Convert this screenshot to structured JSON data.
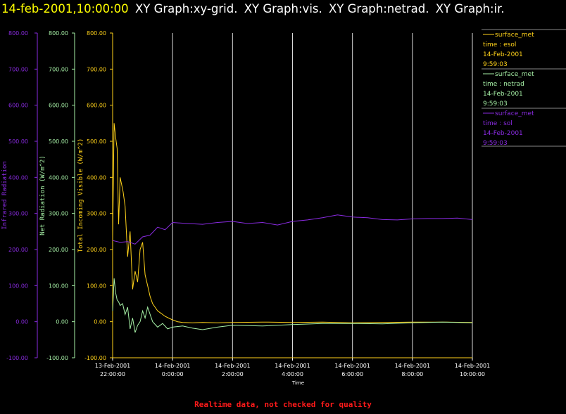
{
  "header": {
    "date_label": "14-feb-2001,10:00:00",
    "graph_titles": [
      "XY Graph:xy-grid.",
      "XY Graph:vis.",
      "XY Graph:netrad.",
      "XY Graph:ir."
    ]
  },
  "footer": {
    "note": "Realtime data, not checked for quality"
  },
  "colors": {
    "background": "#000000",
    "grid": "#d9d9d9",
    "infrared": "#8a2be2",
    "netrad": "#a6f0a6",
    "solar": "#ffd21a",
    "footer": "#ff1a1a",
    "title_date": "#ffff00"
  },
  "legend": [
    {
      "source": "surface_met",
      "field": "time : esol",
      "date": "14-Feb-2001",
      "time": "9:59:03",
      "color": "#ffd21a"
    },
    {
      "source": "surface_met",
      "field": "time : netrad",
      "date": "14-Feb-2001",
      "time": "9:59:03",
      "color": "#a6f0a6"
    },
    {
      "source": "surface_met",
      "field": "time : sol",
      "date": "14-Feb-2001",
      "time": "9:59:03",
      "color": "#8a2be2"
    }
  ],
  "chart_data": {
    "type": "line",
    "xlabel": "Time",
    "x_ticks": [
      {
        "date": "13-Feb-2001",
        "time": "22:00:00"
      },
      {
        "date": "14-Feb-2001",
        "time": "0:00:00"
      },
      {
        "date": "14-Feb-2001",
        "time": "2:00:00"
      },
      {
        "date": "14-Feb-2001",
        "time": "4:00:00"
      },
      {
        "date": "14-Feb-2001",
        "time": "6:00:00"
      },
      {
        "date": "14-Feb-2001",
        "time": "8:00:00"
      },
      {
        "date": "14-Feb-2001",
        "time": "10:00:00"
      }
    ],
    "xlim": [
      "13-Feb-2001 22:00:00",
      "14-Feb-2001 10:00:00"
    ],
    "ylim": [
      -100,
      800
    ],
    "y_ticks": [
      "-100.00",
      "0.00",
      "100.00",
      "200.00",
      "300.00",
      "400.00",
      "500.00",
      "600.00",
      "700.00",
      "800.00"
    ],
    "axes": [
      {
        "label": "Infrared Radiation",
        "color": "#8a2be2"
      },
      {
        "label": "Net Radiation (W/m^2)",
        "color": "#a6f0a6"
      },
      {
        "label": "Total Incoming Visible (W/m^2)",
        "color": "#ffd21a"
      }
    ],
    "grid": "vertical",
    "legend_position": "right",
    "series": [
      {
        "axis": 2,
        "color": "#ffd21a",
        "x": [
          "13-Feb-2001 22:00:00",
          "13-Feb-2001 22:03:00",
          "13-Feb-2001 22:06:00",
          "13-Feb-2001 22:09:00",
          "13-Feb-2001 22:12:00",
          "13-Feb-2001 22:15:00",
          "13-Feb-2001 22:18:00",
          "13-Feb-2001 22:21:00",
          "13-Feb-2001 22:25:00",
          "13-Feb-2001 22:30:00",
          "13-Feb-2001 22:35:00",
          "13-Feb-2001 22:40:00",
          "13-Feb-2001 22:45:00",
          "13-Feb-2001 22:50:00",
          "13-Feb-2001 22:55:00",
          "13-Feb-2001 23:00:00",
          "13-Feb-2001 23:05:00",
          "13-Feb-2001 23:10:00",
          "13-Feb-2001 23:15:00",
          "13-Feb-2001 23:20:00",
          "13-Feb-2001 23:25:00",
          "13-Feb-2001 23:30:00",
          "13-Feb-2001 23:35:00",
          "13-Feb-2001 23:40:00",
          "13-Feb-2001 23:45:00",
          "13-Feb-2001 23:52:00",
          "14-Feb-2001 00:00:00",
          "14-Feb-2001 00:10:00",
          "14-Feb-2001 00:20:00",
          "14-Feb-2001 00:40:00",
          "14-Feb-2001 01:00:00",
          "14-Feb-2001 01:30:00",
          "14-Feb-2001 02:00:00",
          "14-Feb-2001 03:00:00",
          "14-Feb-2001 04:00:00",
          "14-Feb-2001 05:00:00",
          "14-Feb-2001 06:00:00",
          "14-Feb-2001 07:00:00",
          "14-Feb-2001 08:00:00",
          "14-Feb-2001 09:00:00",
          "14-Feb-2001 10:00:00"
        ],
        "y": [
          230,
          550,
          510,
          480,
          270,
          400,
          380,
          360,
          320,
          180,
          250,
          90,
          140,
          110,
          200,
          220,
          130,
          100,
          70,
          50,
          40,
          30,
          25,
          20,
          15,
          10,
          5,
          0,
          -2,
          -3,
          -2,
          -3,
          -2,
          -1,
          -2,
          -1,
          -3,
          -2,
          -1,
          -1,
          -2
        ]
      },
      {
        "axis": 1,
        "color": "#a6f0a6",
        "x": [
          "13-Feb-2001 22:00:00",
          "13-Feb-2001 22:03:00",
          "13-Feb-2001 22:06:00",
          "13-Feb-2001 22:09:00",
          "13-Feb-2001 22:12:00",
          "13-Feb-2001 22:15:00",
          "13-Feb-2001 22:20:00",
          "13-Feb-2001 22:25:00",
          "13-Feb-2001 22:30:00",
          "13-Feb-2001 22:35:00",
          "13-Feb-2001 22:40:00",
          "13-Feb-2001 22:45:00",
          "13-Feb-2001 22:50:00",
          "13-Feb-2001 22:55:00",
          "13-Feb-2001 23:00:00",
          "13-Feb-2001 23:05:00",
          "13-Feb-2001 23:10:00",
          "13-Feb-2001 23:20:00",
          "13-Feb-2001 23:30:00",
          "13-Feb-2001 23:40:00",
          "13-Feb-2001 23:50:00",
          "14-Feb-2001 00:00:00",
          "14-Feb-2001 00:20:00",
          "14-Feb-2001 00:40:00",
          "14-Feb-2001 01:00:00",
          "14-Feb-2001 01:30:00",
          "14-Feb-2001 02:00:00",
          "14-Feb-2001 03:00:00",
          "14-Feb-2001 04:00:00",
          "14-Feb-2001 05:00:00",
          "14-Feb-2001 06:00:00",
          "14-Feb-2001 07:00:00",
          "14-Feb-2001 08:00:00",
          "14-Feb-2001 09:00:00",
          "14-Feb-2001 10:00:00"
        ],
        "y": [
          30,
          120,
          80,
          60,
          55,
          45,
          50,
          20,
          40,
          -20,
          10,
          -30,
          -10,
          0,
          30,
          10,
          40,
          0,
          -15,
          -5,
          -20,
          -15,
          -12,
          -18,
          -22,
          -15,
          -10,
          -12,
          -8,
          -5,
          -5,
          -6,
          -3,
          -1,
          -3
        ]
      },
      {
        "axis": 0,
        "color": "#8a2be2",
        "x": [
          "13-Feb-2001 22:00:00",
          "13-Feb-2001 22:15:00",
          "13-Feb-2001 22:30:00",
          "13-Feb-2001 22:45:00",
          "13-Feb-2001 23:00:00",
          "13-Feb-2001 23:15:00",
          "13-Feb-2001 23:30:00",
          "13-Feb-2001 23:45:00",
          "14-Feb-2001 00:00:00",
          "14-Feb-2001 00:30:00",
          "14-Feb-2001 01:00:00",
          "14-Feb-2001 01:30:00",
          "14-Feb-2001 02:00:00",
          "14-Feb-2001 02:30:00",
          "14-Feb-2001 03:00:00",
          "14-Feb-2001 03:30:00",
          "14-Feb-2001 04:00:00",
          "14-Feb-2001 04:30:00",
          "14-Feb-2001 05:00:00",
          "14-Feb-2001 05:30:00",
          "14-Feb-2001 06:00:00",
          "14-Feb-2001 06:30:00",
          "14-Feb-2001 07:00:00",
          "14-Feb-2001 07:30:00",
          "14-Feb-2001 08:00:00",
          "14-Feb-2001 08:30:00",
          "14-Feb-2001 09:00:00",
          "14-Feb-2001 09:30:00",
          "14-Feb-2001 10:00:00"
        ],
        "y": [
          225,
          220,
          222,
          215,
          235,
          240,
          262,
          255,
          275,
          272,
          270,
          275,
          278,
          272,
          275,
          268,
          278,
          282,
          288,
          296,
          290,
          288,
          283,
          282,
          285,
          286,
          286,
          287,
          283
        ]
      }
    ]
  }
}
